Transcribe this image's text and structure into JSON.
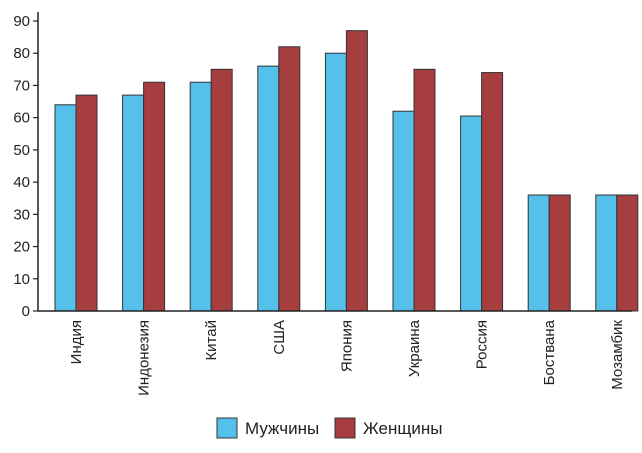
{
  "chart_data": {
    "type": "bar",
    "categories": [
      "Индия",
      "Индонезия",
      "Китай",
      "США",
      "Япония",
      "Украина",
      "Россия",
      "Боствана",
      "Мозамбик"
    ],
    "series": [
      {
        "name": "Мужчины",
        "color": "#55c1ea",
        "values": [
          64,
          67,
          71,
          76,
          80,
          62,
          60.5,
          36,
          36
        ]
      },
      {
        "name": "Женщины",
        "color": "#a63e40",
        "values": [
          67,
          71,
          75,
          82,
          87,
          75,
          74,
          36,
          36
        ]
      }
    ],
    "title": "",
    "xlabel": "",
    "ylabel": "",
    "ylim": [
      0,
      90
    ],
    "yticks": [
      0,
      10,
      20,
      30,
      40,
      50,
      60,
      70,
      80,
      90
    ],
    "grid": false,
    "legend_position": "bottom-center"
  }
}
